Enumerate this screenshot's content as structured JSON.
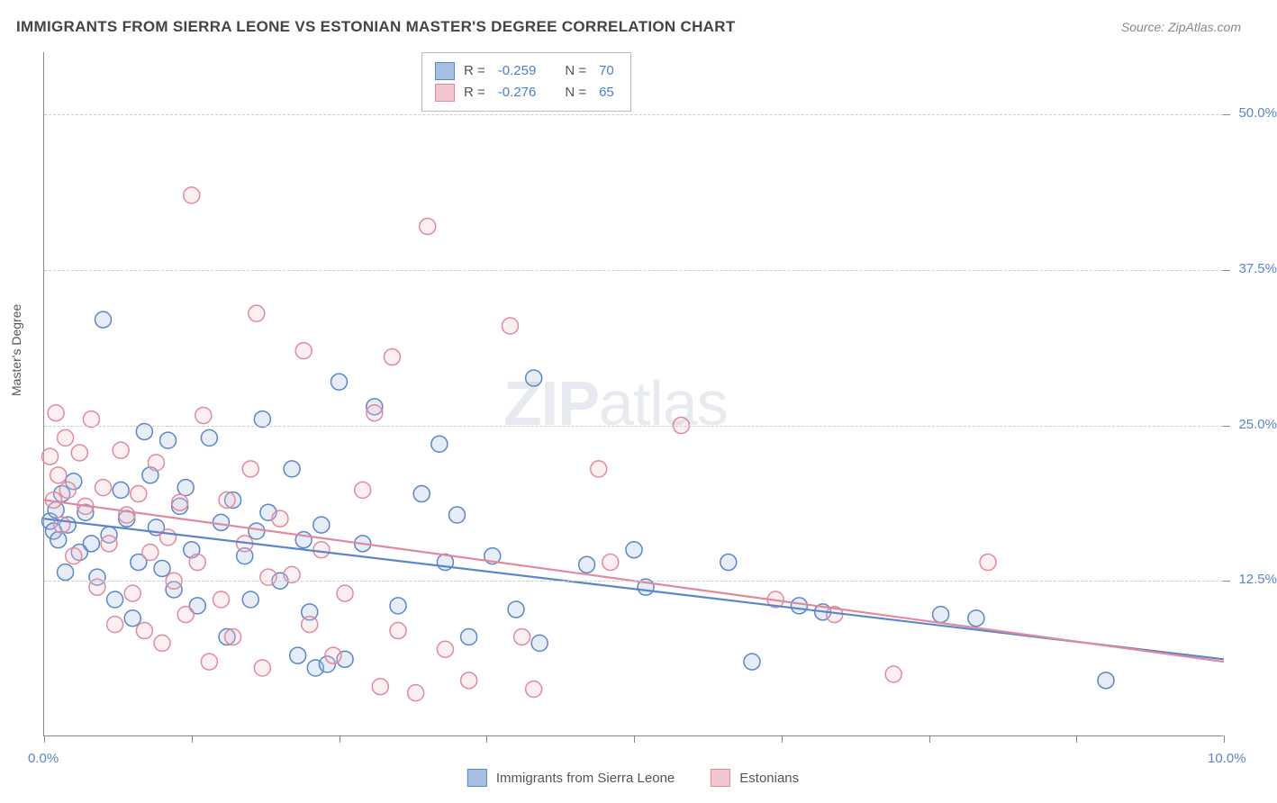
{
  "chart": {
    "type": "scatter",
    "title": "IMMIGRANTS FROM SIERRA LEONE VS ESTONIAN MASTER'S DEGREE CORRELATION CHART",
    "source": "Source: ZipAtlas.com",
    "ylabel": "Master's Degree",
    "watermark": "ZIPatlas",
    "background_color": "#ffffff",
    "grid_color": "#cccccc",
    "axis_color": "#888888",
    "tick_label_color": "#5b86c7",
    "title_fontsize": 17,
    "label_fontsize": 14,
    "tick_fontsize": 15,
    "watermark_fontsize": 70,
    "watermark_color": "rgba(120,140,165,0.18)",
    "xlim": [
      0,
      10
    ],
    "ylim": [
      0,
      55
    ],
    "xticks": [
      0,
      10
    ],
    "xtick_labels": [
      "0.0%",
      "10.0%"
    ],
    "xtick_minor": [
      1.25,
      2.5,
      3.75,
      5.0,
      6.25,
      7.5,
      8.75
    ],
    "yticks": [
      12.5,
      25.0,
      37.5,
      50.0
    ],
    "ytick_labels": [
      "12.5%",
      "25.0%",
      "37.5%",
      "50.0%"
    ],
    "marker_radius": 9,
    "marker_stroke_width": 1.5,
    "marker_fill_opacity": 0.28,
    "trend_line_width": 2.2,
    "series": [
      {
        "name": "Immigrants from Sierra Leone",
        "color": "#5b86c7",
        "fill": "#a6c0e4",
        "R": "-0.259",
        "N": "70",
        "trend": {
          "x1": 0,
          "y1": 17.5,
          "x2": 10,
          "y2": 6.2
        },
        "points": [
          [
            0.05,
            17.3
          ],
          [
            0.08,
            16.5
          ],
          [
            0.1,
            18.2
          ],
          [
            0.12,
            15.8
          ],
          [
            0.15,
            19.5
          ],
          [
            0.18,
            13.2
          ],
          [
            0.2,
            17.0
          ],
          [
            0.25,
            20.5
          ],
          [
            0.3,
            14.8
          ],
          [
            0.35,
            18.0
          ],
          [
            0.4,
            15.5
          ],
          [
            0.45,
            12.8
          ],
          [
            0.5,
            33.5
          ],
          [
            0.55,
            16.2
          ],
          [
            0.6,
            11.0
          ],
          [
            0.65,
            19.8
          ],
          [
            0.7,
            17.5
          ],
          [
            0.75,
            9.5
          ],
          [
            0.8,
            14.0
          ],
          [
            0.85,
            24.5
          ],
          [
            0.9,
            21.0
          ],
          [
            0.95,
            16.8
          ],
          [
            1.0,
            13.5
          ],
          [
            1.05,
            23.8
          ],
          [
            1.1,
            11.8
          ],
          [
            1.15,
            18.5
          ],
          [
            1.2,
            20.0
          ],
          [
            1.25,
            15.0
          ],
          [
            1.3,
            10.5
          ],
          [
            1.4,
            24.0
          ],
          [
            1.5,
            17.2
          ],
          [
            1.55,
            8.0
          ],
          [
            1.6,
            19.0
          ],
          [
            1.7,
            14.5
          ],
          [
            1.75,
            11.0
          ],
          [
            1.8,
            16.5
          ],
          [
            1.85,
            25.5
          ],
          [
            1.9,
            18.0
          ],
          [
            2.0,
            12.5
          ],
          [
            2.1,
            21.5
          ],
          [
            2.15,
            6.5
          ],
          [
            2.2,
            15.8
          ],
          [
            2.25,
            10.0
          ],
          [
            2.3,
            5.5
          ],
          [
            2.35,
            17.0
          ],
          [
            2.4,
            5.8
          ],
          [
            2.5,
            28.5
          ],
          [
            2.55,
            6.2
          ],
          [
            2.7,
            15.5
          ],
          [
            2.8,
            26.5
          ],
          [
            3.0,
            10.5
          ],
          [
            3.2,
            19.5
          ],
          [
            3.35,
            23.5
          ],
          [
            3.4,
            14.0
          ],
          [
            3.5,
            17.8
          ],
          [
            3.6,
            8.0
          ],
          [
            3.8,
            14.5
          ],
          [
            4.0,
            10.2
          ],
          [
            4.15,
            28.8
          ],
          [
            4.2,
            7.5
          ],
          [
            4.6,
            13.8
          ],
          [
            5.0,
            15.0
          ],
          [
            5.1,
            12.0
          ],
          [
            5.8,
            14.0
          ],
          [
            6.0,
            6.0
          ],
          [
            6.4,
            10.5
          ],
          [
            6.6,
            10.0
          ],
          [
            7.6,
            9.8
          ],
          [
            7.9,
            9.5
          ],
          [
            9.0,
            4.5
          ]
        ]
      },
      {
        "name": "Estonians",
        "color": "#e18a9e",
        "fill": "#f4c5d0",
        "R": "-0.276",
        "N": "65",
        "trend": {
          "x1": 0,
          "y1": 19.0,
          "x2": 10,
          "y2": 6.0
        },
        "points": [
          [
            0.05,
            22.5
          ],
          [
            0.08,
            19.0
          ],
          [
            0.1,
            26.0
          ],
          [
            0.12,
            21.0
          ],
          [
            0.15,
            17.0
          ],
          [
            0.18,
            24.0
          ],
          [
            0.2,
            19.8
          ],
          [
            0.25,
            14.5
          ],
          [
            0.3,
            22.8
          ],
          [
            0.35,
            18.5
          ],
          [
            0.4,
            25.5
          ],
          [
            0.45,
            12.0
          ],
          [
            0.5,
            20.0
          ],
          [
            0.55,
            15.5
          ],
          [
            0.6,
            9.0
          ],
          [
            0.65,
            23.0
          ],
          [
            0.7,
            17.8
          ],
          [
            0.75,
            11.5
          ],
          [
            0.8,
            19.5
          ],
          [
            0.85,
            8.5
          ],
          [
            0.9,
            14.8
          ],
          [
            0.95,
            22.0
          ],
          [
            1.0,
            7.5
          ],
          [
            1.05,
            16.0
          ],
          [
            1.1,
            12.5
          ],
          [
            1.15,
            18.8
          ],
          [
            1.2,
            9.8
          ],
          [
            1.25,
            43.5
          ],
          [
            1.3,
            14.0
          ],
          [
            1.35,
            25.8
          ],
          [
            1.4,
            6.0
          ],
          [
            1.5,
            11.0
          ],
          [
            1.55,
            19.0
          ],
          [
            1.6,
            8.0
          ],
          [
            1.7,
            15.5
          ],
          [
            1.75,
            21.5
          ],
          [
            1.8,
            34.0
          ],
          [
            1.85,
            5.5
          ],
          [
            1.9,
            12.8
          ],
          [
            2.0,
            17.5
          ],
          [
            2.1,
            13.0
          ],
          [
            2.2,
            31.0
          ],
          [
            2.25,
            9.0
          ],
          [
            2.35,
            15.0
          ],
          [
            2.45,
            6.5
          ],
          [
            2.55,
            11.5
          ],
          [
            2.7,
            19.8
          ],
          [
            2.8,
            26.0
          ],
          [
            2.85,
            4.0
          ],
          [
            2.95,
            30.5
          ],
          [
            3.0,
            8.5
          ],
          [
            3.15,
            3.5
          ],
          [
            3.25,
            41.0
          ],
          [
            3.4,
            7.0
          ],
          [
            3.6,
            4.5
          ],
          [
            3.95,
            33.0
          ],
          [
            4.05,
            8.0
          ],
          [
            4.15,
            3.8
          ],
          [
            4.7,
            21.5
          ],
          [
            4.8,
            14.0
          ],
          [
            5.4,
            25.0
          ],
          [
            6.2,
            11.0
          ],
          [
            6.7,
            9.8
          ],
          [
            7.2,
            5.0
          ],
          [
            8.0,
            14.0
          ]
        ]
      }
    ]
  },
  "legend_top": {
    "r_label": "R =",
    "n_label": "N ="
  },
  "legend_bottom": {
    "label1": "Immigrants from Sierra Leone",
    "label2": "Estonians"
  }
}
